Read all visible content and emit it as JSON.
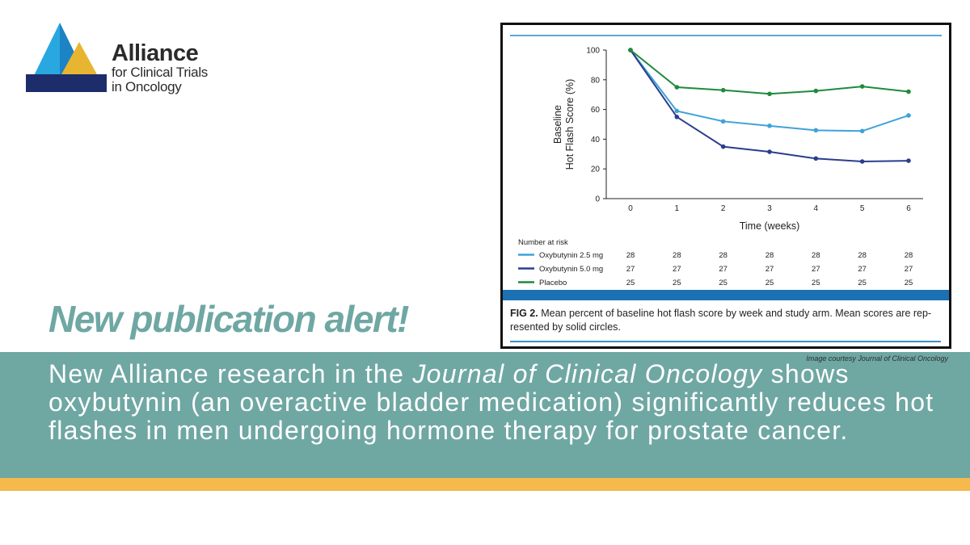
{
  "logo": {
    "name": "Alliance",
    "sub1": "for Clinical Trials",
    "sub2": "in Oncology",
    "colors": {
      "cyan": "#29a8e0",
      "gold": "#e8b531",
      "navy": "#1d2d6b"
    }
  },
  "headline": "New publication alert!",
  "banner": {
    "credit": "Image courtesy Journal of Clinical Oncology",
    "text_before": "New Alliance research in the ",
    "journal": "Journal of Clinical Oncology",
    "text_after": " shows oxybutynin (an overactive bladder medication) significantly reduces hot flashes in men undergoing hormone therapy for prostate cancer."
  },
  "figure": {
    "caption_label": "FIG 2.",
    "caption_text": " Mean percent of baseline hot flash score by week and study arm. Mean scores are rep-resented by solid circles."
  },
  "chart_data": {
    "type": "line",
    "xlabel": "Time (weeks)",
    "ylabel_line1": "Baseline",
    "ylabel_line2": "Hot Flash Score (%)",
    "x": [
      0,
      1,
      2,
      3,
      4,
      5,
      6
    ],
    "ylim": [
      0,
      100
    ],
    "yticks": [
      0,
      20,
      40,
      60,
      80,
      100
    ],
    "series": [
      {
        "name": "Oxybutynin 2.5 mg",
        "color": "#3fa2da",
        "values": [
          100,
          59,
          52,
          49,
          46,
          45.5,
          56
        ],
        "at_risk": [
          28,
          28,
          28,
          28,
          28,
          28,
          28
        ]
      },
      {
        "name": "Oxybutynin 5.0 mg",
        "color": "#2b3e8e",
        "values": [
          100,
          55,
          35,
          31.5,
          27,
          25,
          25.5
        ],
        "at_risk": [
          27,
          27,
          27,
          27,
          27,
          27,
          27
        ]
      },
      {
        "name": "Placebo",
        "color": "#1f8a3c",
        "values": [
          100,
          75,
          73,
          70.5,
          72.5,
          75.5,
          72
        ],
        "at_risk": [
          25,
          25,
          25,
          25,
          25,
          25,
          25
        ]
      }
    ],
    "risk_table_title": "Number at risk",
    "grid": false
  }
}
